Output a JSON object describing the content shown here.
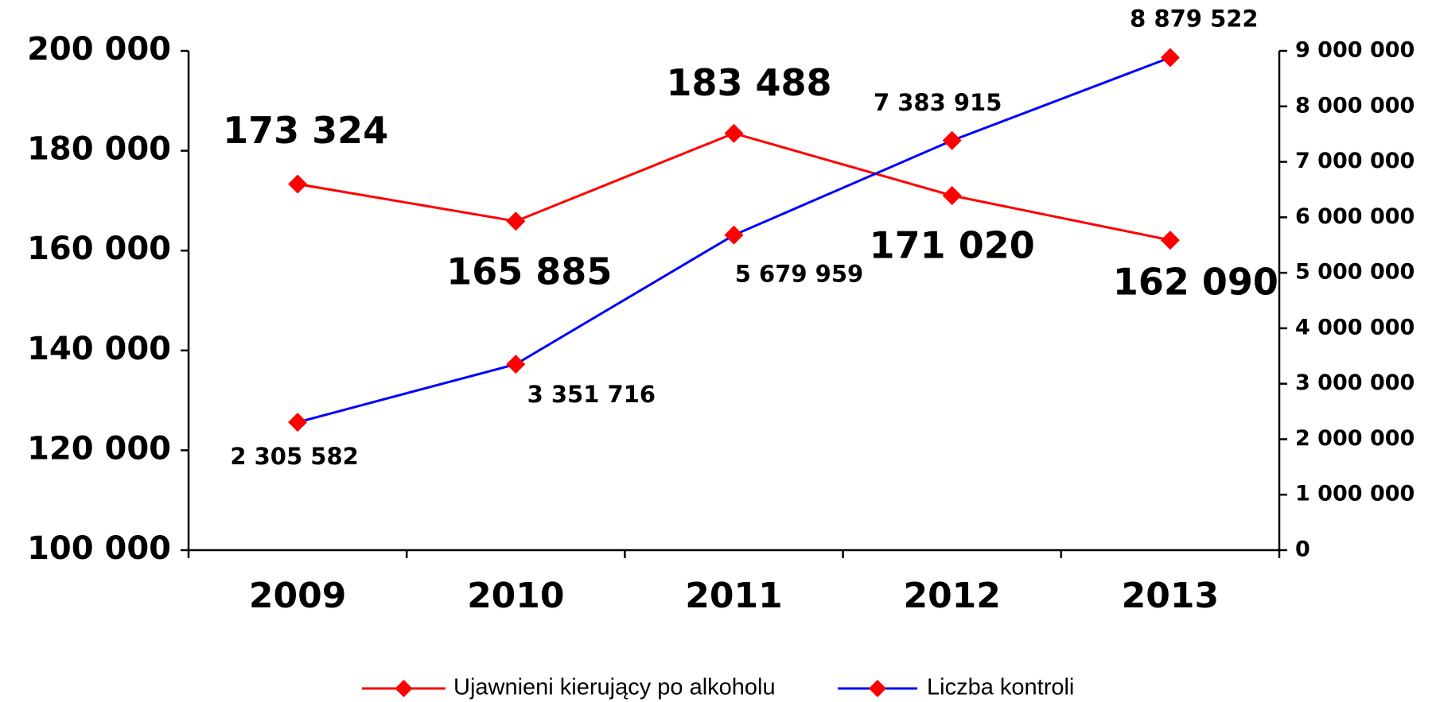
{
  "chart_data": {
    "type": "line",
    "categories": [
      "2009",
      "2010",
      "2011",
      "2012",
      "2013"
    ],
    "series": [
      {
        "name": "Ujawnieni kierujący po alkoholu",
        "color": "#ff0000",
        "marker_color": "#ff0000",
        "axis": "y",
        "values": [
          173324,
          165885,
          183488,
          171020,
          162090
        ],
        "value_labels": [
          "173 324",
          "165 885",
          "183 488",
          "171 020",
          "162 090"
        ]
      },
      {
        "name": "Liczba kontroli",
        "color": "#0000ff",
        "marker_color": "#ff0000",
        "axis": "y2",
        "values": [
          2305582,
          3351716,
          5679959,
          7383915,
          8879522
        ],
        "value_labels": [
          "2 305 582",
          "3 351 716",
          "5 679 959",
          "7 383 915",
          "8 879 522"
        ]
      }
    ],
    "ylim": [
      100000,
      200000
    ],
    "yticks": [
      {
        "value": 100000,
        "label": "100 000"
      },
      {
        "value": 120000,
        "label": "120 000"
      },
      {
        "value": 140000,
        "label": "140 000"
      },
      {
        "value": 160000,
        "label": "160 000"
      },
      {
        "value": 180000,
        "label": "180 000"
      },
      {
        "value": 200000,
        "label": "200 000"
      }
    ],
    "y2lim": [
      0,
      9000000
    ],
    "y2ticks": [
      0,
      {
        "value": 1000000,
        "label": "1 000 000"
      },
      {
        "value": 2000000,
        "label": "2 000 000"
      },
      {
        "value": 3000000,
        "label": "3 000 000"
      },
      {
        "value": 4000000,
        "label": "4 000 000"
      },
      {
        "value": 5000000,
        "label": "5 000 000"
      },
      {
        "value": 6000000,
        "label": "6 000 000"
      },
      {
        "value": 7000000,
        "label": "7 000 000"
      },
      {
        "value": 8000000,
        "label": "8 000 000"
      },
      {
        "value": 9000000,
        "label": "9 000 000"
      }
    ],
    "grid": false,
    "legend": "bottom"
  }
}
